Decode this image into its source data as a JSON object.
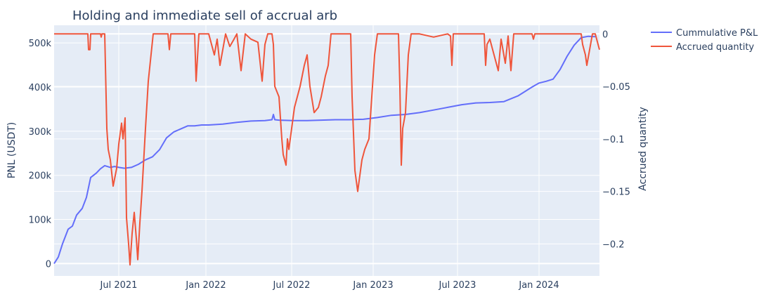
{
  "chart_data": {
    "type": "line",
    "title": "Holding and immediate sell of accrual arb",
    "xlabel": "",
    "ylabel": "PNL (USDT)",
    "y2label": "Accrued quantity",
    "grid": true,
    "legend_position": "top-right-outside",
    "x_ticks": [
      "Jul 2021",
      "Jan 2022",
      "Jul 2022",
      "Jan 2023",
      "Jul 2023",
      "Jan 2024"
    ],
    "x_tick_months": [
      4.6,
      10.8,
      16.9,
      22.7,
      28.7,
      34.5
    ],
    "x_range_months": [
      0,
      38.8
    ],
    "y_ticks": [
      "0",
      "100k",
      "200k",
      "300k",
      "400k",
      "500k"
    ],
    "y_tick_values": [
      0,
      100000,
      200000,
      300000,
      400000,
      500000
    ],
    "ylim": [
      -28000,
      540000
    ],
    "y2_ticks": [
      "0",
      "−0.05",
      "−0.1",
      "−0.15",
      "−0.2"
    ],
    "y2_tick_values": [
      0,
      -0.05,
      -0.1,
      -0.15,
      -0.2
    ],
    "y2lim": [
      -0.2305,
      0.0082
    ],
    "series": [
      {
        "name": "Cummulative P&L",
        "axis": "y",
        "color": "#636efa",
        "x": [
          0,
          0.3,
          0.6,
          1.0,
          1.3,
          1.6,
          2.0,
          2.3,
          2.6,
          3.0,
          3.3,
          3.6,
          4.0,
          4.3,
          4.6,
          5.0,
          5.5,
          6.0,
          6.5,
          7.0,
          7.5,
          8.0,
          8.5,
          9.0,
          9.5,
          10.0,
          10.5,
          11.0,
          12.0,
          13.0,
          14.0,
          15.0,
          15.5,
          15.6,
          15.7,
          16.0,
          17.0,
          18.0,
          19.0,
          20.0,
          21.0,
          22.0,
          23.0,
          24.0,
          25.0,
          26.0,
          27.0,
          28.0,
          29.0,
          30.0,
          31.0,
          32.0,
          33.0,
          34.0,
          34.5,
          35.0,
          35.5,
          36.0,
          36.5,
          37.0,
          37.5,
          38.0,
          38.5
        ],
        "values": [
          0,
          15000,
          45000,
          78000,
          85000,
          110000,
          125000,
          150000,
          195000,
          205000,
          215000,
          222000,
          218000,
          220000,
          218000,
          216000,
          218000,
          225000,
          235000,
          242000,
          258000,
          285000,
          298000,
          305000,
          312000,
          312000,
          314000,
          314000,
          316000,
          320000,
          323000,
          324000,
          326000,
          338000,
          326000,
          325000,
          324000,
          324000,
          325000,
          326000,
          326000,
          327000,
          331000,
          336000,
          338000,
          342000,
          348000,
          354000,
          360000,
          364000,
          365000,
          367000,
          380000,
          400000,
          409000,
          413000,
          418000,
          440000,
          470000,
          495000,
          512000,
          515000,
          514000
        ]
      },
      {
        "name": "Accrued quantity",
        "axis": "y2",
        "color": "#ef553b",
        "x": [
          0,
          2.4,
          2.45,
          2.55,
          2.6,
          3.3,
          3.35,
          3.4,
          3.5,
          3.6,
          3.75,
          3.85,
          4.0,
          4.2,
          4.45,
          4.6,
          4.8,
          4.9,
          5.05,
          5.15,
          5.3,
          5.4,
          5.55,
          5.7,
          5.85,
          5.95,
          6.1,
          6.25,
          6.5,
          6.7,
          7.05,
          8.0,
          8.1,
          8.2,
          8.3,
          10.0,
          10.1,
          10.3,
          10.5,
          11.0,
          11.2,
          11.4,
          11.6,
          11.8,
          12.0,
          12.2,
          12.5,
          12.8,
          13.0,
          13.3,
          13.6,
          14.0,
          14.5,
          14.8,
          15.0,
          15.2,
          15.5,
          15.6,
          15.7,
          16.0,
          16.2,
          16.3,
          16.5,
          16.6,
          16.7,
          16.9,
          17.1,
          17.3,
          17.5,
          17.8,
          18.0,
          18.2,
          18.5,
          18.8,
          19.0,
          19.3,
          19.5,
          19.7,
          20.0,
          20.4,
          21.1,
          21.2,
          21.4,
          21.6,
          21.7,
          21.9,
          22.1,
          22.4,
          22.6,
          22.8,
          23.0,
          24.5,
          24.6,
          24.7,
          24.8,
          25.0,
          25.2,
          25.4,
          25.7,
          26.0,
          27.0,
          28.0,
          28.2,
          28.3,
          28.4,
          29.0,
          30.0,
          30.6,
          30.7,
          30.8,
          31.0,
          31.3,
          31.6,
          31.8,
          32.1,
          32.3,
          32.5,
          32.7,
          33.0,
          34.0,
          34.1,
          34.2,
          35.0,
          36.0,
          37.5,
          37.6,
          37.8,
          37.9,
          38.1,
          38.3,
          38.5,
          38.7,
          38.8
        ],
        "values": [
          0,
          0,
          -0.015,
          -0.015,
          0,
          0,
          -0.003,
          0,
          0,
          0,
          -0.09,
          -0.11,
          -0.12,
          -0.145,
          -0.128,
          -0.105,
          -0.085,
          -0.1,
          -0.08,
          -0.175,
          -0.2,
          -0.22,
          -0.19,
          -0.17,
          -0.195,
          -0.215,
          -0.18,
          -0.15,
          -0.09,
          -0.045,
          0,
          0,
          0,
          -0.015,
          0,
          0,
          -0.045,
          0,
          0,
          0,
          -0.01,
          -0.02,
          -0.005,
          -0.03,
          -0.015,
          0,
          -0.012,
          -0.005,
          0,
          -0.035,
          0,
          -0.005,
          -0.008,
          -0.045,
          -0.01,
          0,
          0,
          -0.01,
          -0.05,
          -0.06,
          -0.1,
          -0.115,
          -0.125,
          -0.1,
          -0.11,
          -0.09,
          -0.07,
          -0.06,
          -0.05,
          -0.03,
          -0.02,
          -0.05,
          -0.075,
          -0.07,
          -0.06,
          -0.04,
          -0.03,
          0,
          0,
          0,
          0,
          -0.06,
          -0.13,
          -0.15,
          -0.14,
          -0.12,
          -0.11,
          -0.1,
          -0.06,
          -0.02,
          0,
          0,
          -0.05,
          -0.125,
          -0.09,
          -0.075,
          -0.02,
          0,
          0,
          0,
          -0.003,
          0,
          -0.002,
          -0.03,
          0,
          0,
          0,
          0,
          -0.03,
          -0.01,
          -0.005,
          -0.02,
          -0.035,
          -0.005,
          -0.028,
          -0.002,
          -0.035,
          0,
          0,
          0,
          -0.005,
          0,
          0,
          0,
          0,
          -0.01,
          -0.02,
          -0.03,
          -0.015,
          0,
          0,
          -0.01,
          -0.015
        ]
      }
    ]
  },
  "legend": {
    "items": [
      "Cummulative P&L",
      "Accrued quantity"
    ]
  }
}
